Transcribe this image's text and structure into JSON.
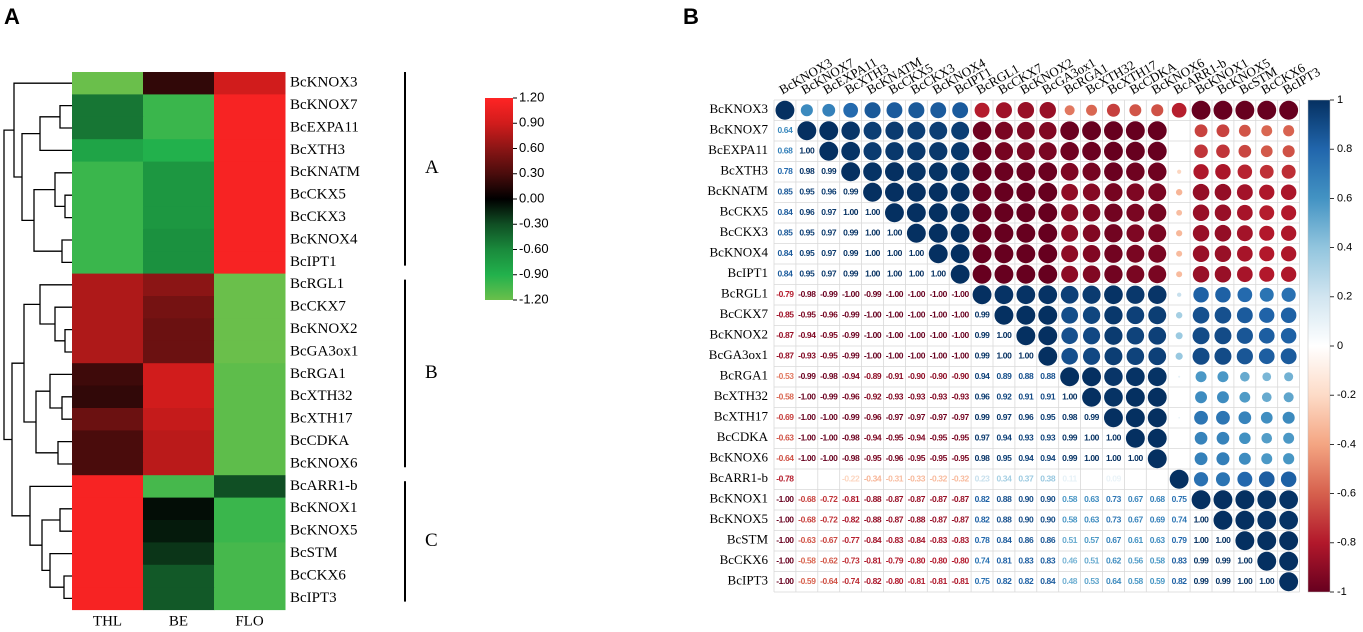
{
  "chart_data": [
    {
      "type": "heatmap",
      "label": "A",
      "columns": [
        "THL",
        "BE",
        "FLO"
      ],
      "rows": [
        "BcKNOX3",
        "BcKNOX7",
        "BcEXPA11",
        "BcXTH3",
        "BcKNATM",
        "BcCKX5",
        "BcCKX3",
        "BcKNOX4",
        "BcIPT1",
        "BcRGL1",
        "BcCKX7",
        "BcKNOX2",
        "BcGA3ox1",
        "BcRGA1",
        "BcXTH32",
        "BcXTH17",
        "BcCDKA",
        "BcKNOX6",
        "BcARR1-b",
        "BcKNOX1",
        "BcKNOX5",
        "BcSTM",
        "BcCKX6",
        "BcIPT3"
      ],
      "values": [
        [
          -1.2,
          0.2,
          0.9
        ],
        [
          -0.5,
          -1.0,
          1.15
        ],
        [
          -0.5,
          -1.0,
          1.15
        ],
        [
          -0.8,
          -0.9,
          1.15
        ],
        [
          -1.0,
          -0.7,
          1.15
        ],
        [
          -1.0,
          -0.7,
          1.15
        ],
        [
          -1.0,
          -0.7,
          1.15
        ],
        [
          -1.0,
          -0.65,
          1.15
        ],
        [
          -1.0,
          -0.65,
          1.15
        ],
        [
          0.75,
          0.6,
          -1.2
        ],
        [
          0.75,
          0.5,
          -1.2
        ],
        [
          0.75,
          0.45,
          -1.2
        ],
        [
          0.75,
          0.45,
          -1.2
        ],
        [
          0.25,
          0.9,
          -1.15
        ],
        [
          0.2,
          0.9,
          -1.15
        ],
        [
          0.45,
          0.85,
          -1.15
        ],
        [
          0.3,
          0.8,
          -1.15
        ],
        [
          0.3,
          0.8,
          -1.15
        ],
        [
          1.15,
          -1.05,
          -0.3
        ],
        [
          1.15,
          -0.05,
          -1.0
        ],
        [
          1.15,
          -0.1,
          -1.0
        ],
        [
          1.15,
          -0.2,
          -1.05
        ],
        [
          1.15,
          -0.35,
          -1.05
        ],
        [
          1.15,
          -0.35,
          -1.05
        ]
      ],
      "groups": [
        {
          "label": "A",
          "size": 9
        },
        {
          "label": "B",
          "size": 9
        },
        {
          "label": "C",
          "size": 6
        }
      ],
      "zlim": [
        -1.2,
        1.2
      ],
      "zticks": [
        {
          "value": 1.2,
          "label": "1.20"
        },
        {
          "value": 0.9,
          "label": "0.90"
        },
        {
          "value": 0.6,
          "label": "0.60"
        },
        {
          "value": 0.3,
          "label": "0.30"
        },
        {
          "value": 0,
          "label": "0.00"
        },
        {
          "value": -0.3,
          "label": "-0.30"
        },
        {
          "value": -0.6,
          "label": "-0.60"
        },
        {
          "value": -0.9,
          "label": "-0.90"
        },
        {
          "value": -1.2,
          "label": "-1.20"
        }
      ],
      "colormap": [
        "#6abf4b",
        "#22b14c",
        "#1a8a3c",
        "#104f24",
        "#000000",
        "#4a0c0c",
        "#8b1515",
        "#d11c1c",
        "#ff2424"
      ]
    },
    {
      "type": "corrplot",
      "label": "B",
      "variables": [
        "BcKNOX3",
        "BcKNOX7",
        "BcEXPA11",
        "BcXTH3",
        "BcKNATM",
        "BcCKX5",
        "BcCKX3",
        "BcKNOX4",
        "BcIPT1",
        "BcRGL1",
        "BcCKX7",
        "BcKNOX2",
        "BcGA3ox1",
        "BcRGA1",
        "BcXTH32",
        "BcXTH17",
        "BcCDKA",
        "BcKNOX6",
        "BcARR1-b",
        "BcKNOX1",
        "BcKNOX5",
        "BcSTM",
        "BcCKX6",
        "BcIPT3"
      ],
      "values": [
        [],
        [
          0.64
        ],
        [
          0.68,
          1.0
        ],
        [
          0.78,
          0.98,
          0.99
        ],
        [
          0.85,
          0.95,
          0.96,
          0.99
        ],
        [
          0.84,
          0.96,
          0.97,
          1.0,
          1.0
        ],
        [
          0.85,
          0.95,
          0.97,
          0.99,
          1.0,
          1.0
        ],
        [
          0.84,
          0.95,
          0.97,
          0.99,
          1.0,
          1.0,
          1.0
        ],
        [
          0.84,
          0.95,
          0.97,
          0.99,
          1.0,
          1.0,
          1.0,
          1.0
        ],
        [
          -0.79,
          -0.98,
          -0.99,
          -1.0,
          -0.99,
          -1.0,
          -1.0,
          -1.0,
          -1.0
        ],
        [
          -0.85,
          -0.95,
          -0.96,
          -0.99,
          -1.0,
          -1.0,
          -1.0,
          -1.0,
          -1.0,
          0.99
        ],
        [
          -0.87,
          -0.94,
          -0.95,
          -0.99,
          -1.0,
          -1.0,
          -1.0,
          -1.0,
          -1.0,
          0.99,
          1.0
        ],
        [
          -0.87,
          -0.93,
          -0.95,
          -0.99,
          -1.0,
          -1.0,
          -1.0,
          -1.0,
          -1.0,
          0.99,
          1.0,
          1.0
        ],
        [
          -0.53,
          -0.99,
          -0.98,
          -0.94,
          -0.89,
          -0.91,
          -0.9,
          -0.9,
          -0.9,
          0.94,
          0.89,
          0.88,
          0.88
        ],
        [
          -0.58,
          -1.0,
          -0.99,
          -0.96,
          -0.92,
          -0.93,
          -0.93,
          -0.93,
          -0.93,
          0.96,
          0.92,
          0.91,
          0.91,
          1.0
        ],
        [
          -0.69,
          -1.0,
          -1.0,
          -0.99,
          -0.96,
          -0.97,
          -0.97,
          -0.97,
          -0.97,
          0.99,
          0.97,
          0.96,
          0.95,
          0.98,
          0.99
        ],
        [
          -0.63,
          -1.0,
          -1.0,
          -0.98,
          -0.94,
          -0.95,
          -0.94,
          -0.95,
          -0.95,
          0.97,
          0.94,
          0.93,
          0.93,
          0.99,
          1.0,
          1.0
        ],
        [
          -0.64,
          -1.0,
          -1.0,
          -0.98,
          -0.95,
          -0.96,
          -0.95,
          -0.95,
          -0.95,
          0.98,
          0.95,
          0.94,
          0.94,
          0.99,
          1.0,
          1.0,
          1.0
        ],
        [
          -0.78,
          null,
          null,
          -0.22,
          -0.34,
          -0.31,
          -0.33,
          -0.32,
          -0.32,
          0.23,
          0.34,
          0.37,
          0.38,
          0.11,
          null,
          0.09,
          null,
          null
        ],
        [
          -1.0,
          -0.68,
          -0.72,
          -0.81,
          -0.88,
          -0.87,
          -0.87,
          -0.87,
          -0.87,
          0.82,
          0.88,
          0.9,
          0.9,
          0.58,
          0.63,
          0.73,
          0.67,
          0.68,
          0.75
        ],
        [
          -1.0,
          -0.68,
          -0.72,
          -0.82,
          -0.88,
          -0.87,
          -0.88,
          -0.87,
          -0.87,
          0.82,
          0.88,
          0.9,
          0.9,
          0.58,
          0.63,
          0.73,
          0.67,
          0.69,
          0.74,
          1.0
        ],
        [
          -1.0,
          -0.63,
          -0.67,
          -0.77,
          -0.84,
          -0.83,
          -0.84,
          -0.83,
          -0.83,
          0.78,
          0.84,
          0.86,
          0.86,
          0.51,
          0.57,
          0.67,
          0.61,
          0.63,
          0.79,
          1.0,
          1.0
        ],
        [
          -1.0,
          -0.58,
          -0.62,
          -0.73,
          -0.81,
          -0.79,
          -0.8,
          -0.8,
          -0.8,
          0.74,
          0.81,
          0.83,
          0.83,
          0.46,
          0.51,
          0.62,
          0.56,
          0.58,
          0.83,
          0.99,
          0.99,
          1.0
        ],
        [
          -1.0,
          -0.59,
          -0.64,
          -0.74,
          -0.82,
          -0.8,
          -0.81,
          -0.81,
          -0.81,
          0.75,
          0.82,
          0.82,
          0.84,
          0.48,
          0.53,
          0.64,
          0.58,
          0.59,
          0.82,
          0.99,
          0.99,
          1.0,
          1.0
        ]
      ],
      "value_labels": [
        [],
        [
          "0.64"
        ],
        [
          "0.68",
          "1.00"
        ],
        [
          "0.78",
          "0.98",
          "0.99"
        ],
        [
          "0.85",
          "0.95",
          "0.96",
          "0.99"
        ],
        [
          "0.84",
          "0.96",
          "0.97",
          "1.00",
          "1.00"
        ],
        [
          "0.85",
          "0.95",
          "0.97",
          "0.99",
          "1.00",
          "1.00"
        ],
        [
          "0.84",
          "0.95",
          "0.97",
          "0.99",
          "1.00",
          "1.00",
          "1.00"
        ],
        [
          "0.84",
          "0.95",
          "0.97",
          "0.99",
          "1.00",
          "1.00",
          "1.00",
          "1.00"
        ],
        [
          "-0.79",
          "-0.98",
          "-0.99",
          "-1.00",
          "-0.99",
          "-1.00",
          "-1.00",
          "-1.00",
          "-1.00"
        ],
        [
          "-0.85",
          "-0.95",
          "-0.96",
          "-0.99",
          "-1.00",
          "-1.00",
          "-1.00",
          "-1.00",
          "-1.00",
          "0.99"
        ],
        [
          "-0.87",
          "-0.94",
          "-0.95",
          "-0.99",
          "-1.00",
          "-1.00",
          "-1.00",
          "-1.00",
          "-1.00",
          "0.99",
          "1.00"
        ],
        [
          "-0.87",
          "-0.93",
          "-0.95",
          "-0.99",
          "-1.00",
          "-1.00",
          "-1.00",
          "-1.00",
          "-1.00",
          "0.99",
          "1.00",
          "1.00"
        ],
        [
          "-0.53",
          "-0.99",
          "-0.98",
          "-0.94",
          "-0.89",
          "-0.91",
          "-0.90",
          "-0.90",
          "-0.90",
          "0.94",
          "0.89",
          "0.88",
          "0.88"
        ],
        [
          "-0.58",
          "-1.00",
          "-0.99",
          "-0.96",
          "-0.92",
          "-0.93",
          "-0.93",
          "-0.93",
          "-0.93",
          "0.96",
          "0.92",
          "0.91",
          "0.91",
          "1.00"
        ],
        [
          "-0.69",
          "-1.00",
          "-1.00",
          "-0.99",
          "-0.96",
          "-0.97",
          "-0.97",
          "-0.97",
          "-0.97",
          "0.99",
          "0.97",
          "0.96",
          "0.95",
          "0.98",
          "0.99"
        ],
        [
          "-0.63",
          "-1.00",
          "-1.00",
          "-0.98",
          "-0.94",
          "-0.95",
          "-0.94",
          "-0.95",
          "-0.95",
          "0.97",
          "0.94",
          "0.93",
          "0.93",
          "0.99",
          "1.00",
          "1.00"
        ],
        [
          "-0.64",
          "-1.00",
          "-1.00",
          "-0.98",
          "-0.95",
          "-0.96",
          "-0.95",
          "-0.95",
          "-0.95",
          "0.98",
          "0.95",
          "0.94",
          "0.94",
          "0.99",
          "1.00",
          "1.00",
          "1.00"
        ],
        [
          "-0.78",
          null,
          null,
          "-0.22",
          "-0.34",
          "-0.31",
          "-0.33",
          "-0.32",
          "-0.32",
          "0.23",
          "0.34",
          "0.37",
          "0.38",
          "0.11",
          null,
          "0.09",
          null,
          null
        ],
        [
          "-1.00",
          "-0.68",
          "-0.72",
          "-0.81",
          "-0.88",
          "-0.87",
          "-0.87",
          "-0.87",
          "-0.87",
          "0.82",
          "0.88",
          "0.90",
          "0.90",
          "0.58",
          "0.63",
          "0.73",
          "0.67",
          "0.68",
          "0.75"
        ],
        [
          "-1.00",
          "-0.68",
          "-0.72",
          "-0.82",
          "-0.88",
          "-0.87",
          "-0.88",
          "-0.87",
          "-0.87",
          "0.82",
          "0.88",
          "0.90",
          "0.90",
          "0.58",
          "0.63",
          "0.73",
          "0.67",
          "0.69",
          "0.74",
          "1.00"
        ],
        [
          "-1.00",
          "-0.63",
          "-0.67",
          "-0.77",
          "-0.84",
          "-0.83",
          "-0.84",
          "-0.83",
          "-0.83",
          "0.78",
          "0.84",
          "0.86",
          "0.86",
          "0.51",
          "0.57",
          "0.67",
          "0.61",
          "0.63",
          "0.79",
          "1.00",
          "1.00"
        ],
        [
          "-1.00",
          "-0.58",
          "-0.62",
          "-0.73",
          "-0.81",
          "-0.79",
          "-0.80",
          "-0.80",
          "-0.80",
          "0.74",
          "0.81",
          "0.83",
          "0.83",
          "0.46",
          "0.51",
          "0.62",
          "0.56",
          "0.58",
          "0.83",
          "0.99",
          "0.99",
          "1.00"
        ],
        [
          "-1.00",
          "-0.59",
          "-0.64",
          "-0.74",
          "-0.82",
          "-0.80",
          "-0.81",
          "-0.81",
          "-0.81",
          "0.75",
          "0.82",
          "0.82",
          "0.84",
          "0.48",
          "0.53",
          "0.64",
          "0.58",
          "0.59",
          "0.82",
          "0.99",
          "0.99",
          "1.00",
          "1.00"
        ]
      ],
      "zlim": [
        -1,
        1
      ],
      "zticks": [
        1,
        0.8,
        0.6,
        0.4,
        0.2,
        0,
        -0.2,
        -0.4,
        -0.6,
        -0.8,
        -1
      ],
      "colormap": [
        "#67001f",
        "#b2182b",
        "#d6604d",
        "#f4a582",
        "#fddbc7",
        "#ffffff",
        "#d1e5f0",
        "#92c5de",
        "#4393c3",
        "#2166ac",
        "#053061"
      ]
    }
  ]
}
